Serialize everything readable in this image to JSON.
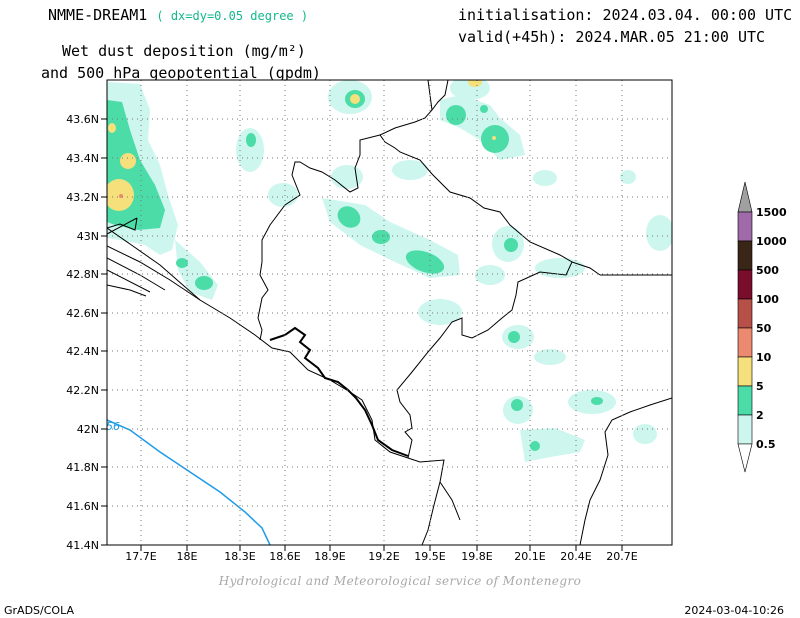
{
  "header": {
    "model": "NMME-DREAM1",
    "resolution": "( dx=dy=0.05 degree )",
    "init": "initialisation: 2024.03.04. 00:00 UTC",
    "valid": "valid(+45h): 2024.MAR.05 21:00 UTC",
    "title_line1": "Wet dust deposition (mg/m²)",
    "title_line2": "and 500 hPa geopotential (gpdm)"
  },
  "map": {
    "lon_ticks": [
      "17.7E",
      "18E",
      "18.3E",
      "18.6E",
      "18.9E",
      "19.2E",
      "19.5E",
      "19.8E",
      "20.1E",
      "20.4E",
      "20.7E"
    ],
    "lat_ticks": [
      "43.6N",
      "43.4N",
      "43.2N",
      "43N",
      "42.8N",
      "42.6N",
      "42.4N",
      "42.2N",
      "42N",
      "41.8N",
      "41.6N",
      "41.4N"
    ],
    "contour_label": "56",
    "contour_color": "#1e9be8"
  },
  "legend": {
    "levels": [
      "1500",
      "1000",
      "500",
      "100",
      "50",
      "10",
      "5",
      "2",
      "0.5"
    ],
    "colors": [
      "#a0a0a0",
      "#9e6ba8",
      "#3a2616",
      "#7a0c2c",
      "#b65048",
      "#ec8a70",
      "#f6e07c",
      "#4cdca8",
      "#ccf6ee"
    ]
  },
  "footer": {
    "credit": "Hydrological and Meteorological service of Montenegro",
    "software": "GrADS/COLA",
    "timestamp": "2024-03-04-10:26"
  }
}
